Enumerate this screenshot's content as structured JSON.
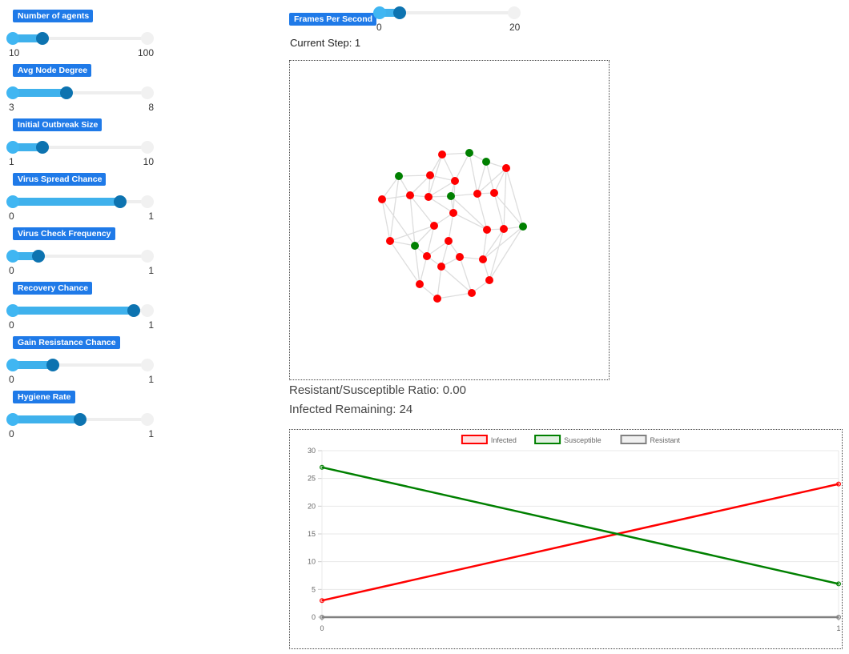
{
  "controls": [
    {
      "label": "Number of agents",
      "min": "10",
      "max": "100",
      "fraction": 0.22
    },
    {
      "label": "Avg Node Degree",
      "min": "3",
      "max": "8",
      "fraction": 0.4
    },
    {
      "label": "Initial Outbreak Size",
      "min": "1",
      "max": "10",
      "fraction": 0.22
    },
    {
      "label": "Virus Spread Chance",
      "min": "0",
      "max": "1",
      "fraction": 0.8
    },
    {
      "label": "Virus Check Frequency",
      "min": "0",
      "max": "1",
      "fraction": 0.19
    },
    {
      "label": "Recovery Chance",
      "min": "0",
      "max": "1",
      "fraction": 0.9
    },
    {
      "label": "Gain Resistance Chance",
      "min": "0",
      "max": "1",
      "fraction": 0.3
    },
    {
      "label": "Hygiene Rate",
      "min": "0",
      "max": "1",
      "fraction": 0.5
    }
  ],
  "fps": {
    "label": "Frames Per Second",
    "min": "0",
    "max": "20",
    "fraction": 0.15
  },
  "current_step": "Current Step: 1",
  "ratio_text": "Resistant/Susceptible Ratio: 0.00",
  "infected_text": "Infected Remaining: 24",
  "colors": {
    "infected": "#ff0000",
    "susceptible": "#008000",
    "resistant": "#808080",
    "badge": "#1f7ae8"
  },
  "chart_data": {
    "type": "line",
    "x": [
      0,
      1
    ],
    "series": [
      {
        "name": "Infected",
        "values": [
          3,
          24
        ],
        "color": "#ff0000"
      },
      {
        "name": "Susceptible",
        "values": [
          27,
          6
        ],
        "color": "#008000"
      },
      {
        "name": "Resistant",
        "values": [
          0,
          0
        ],
        "color": "#808080"
      }
    ],
    "ylim": [
      0,
      30
    ],
    "yticks": [
      0,
      5,
      10,
      15,
      20,
      25,
      30
    ],
    "xticks": [
      "0",
      "1"
    ],
    "legend": "top",
    "grid": true
  }
}
